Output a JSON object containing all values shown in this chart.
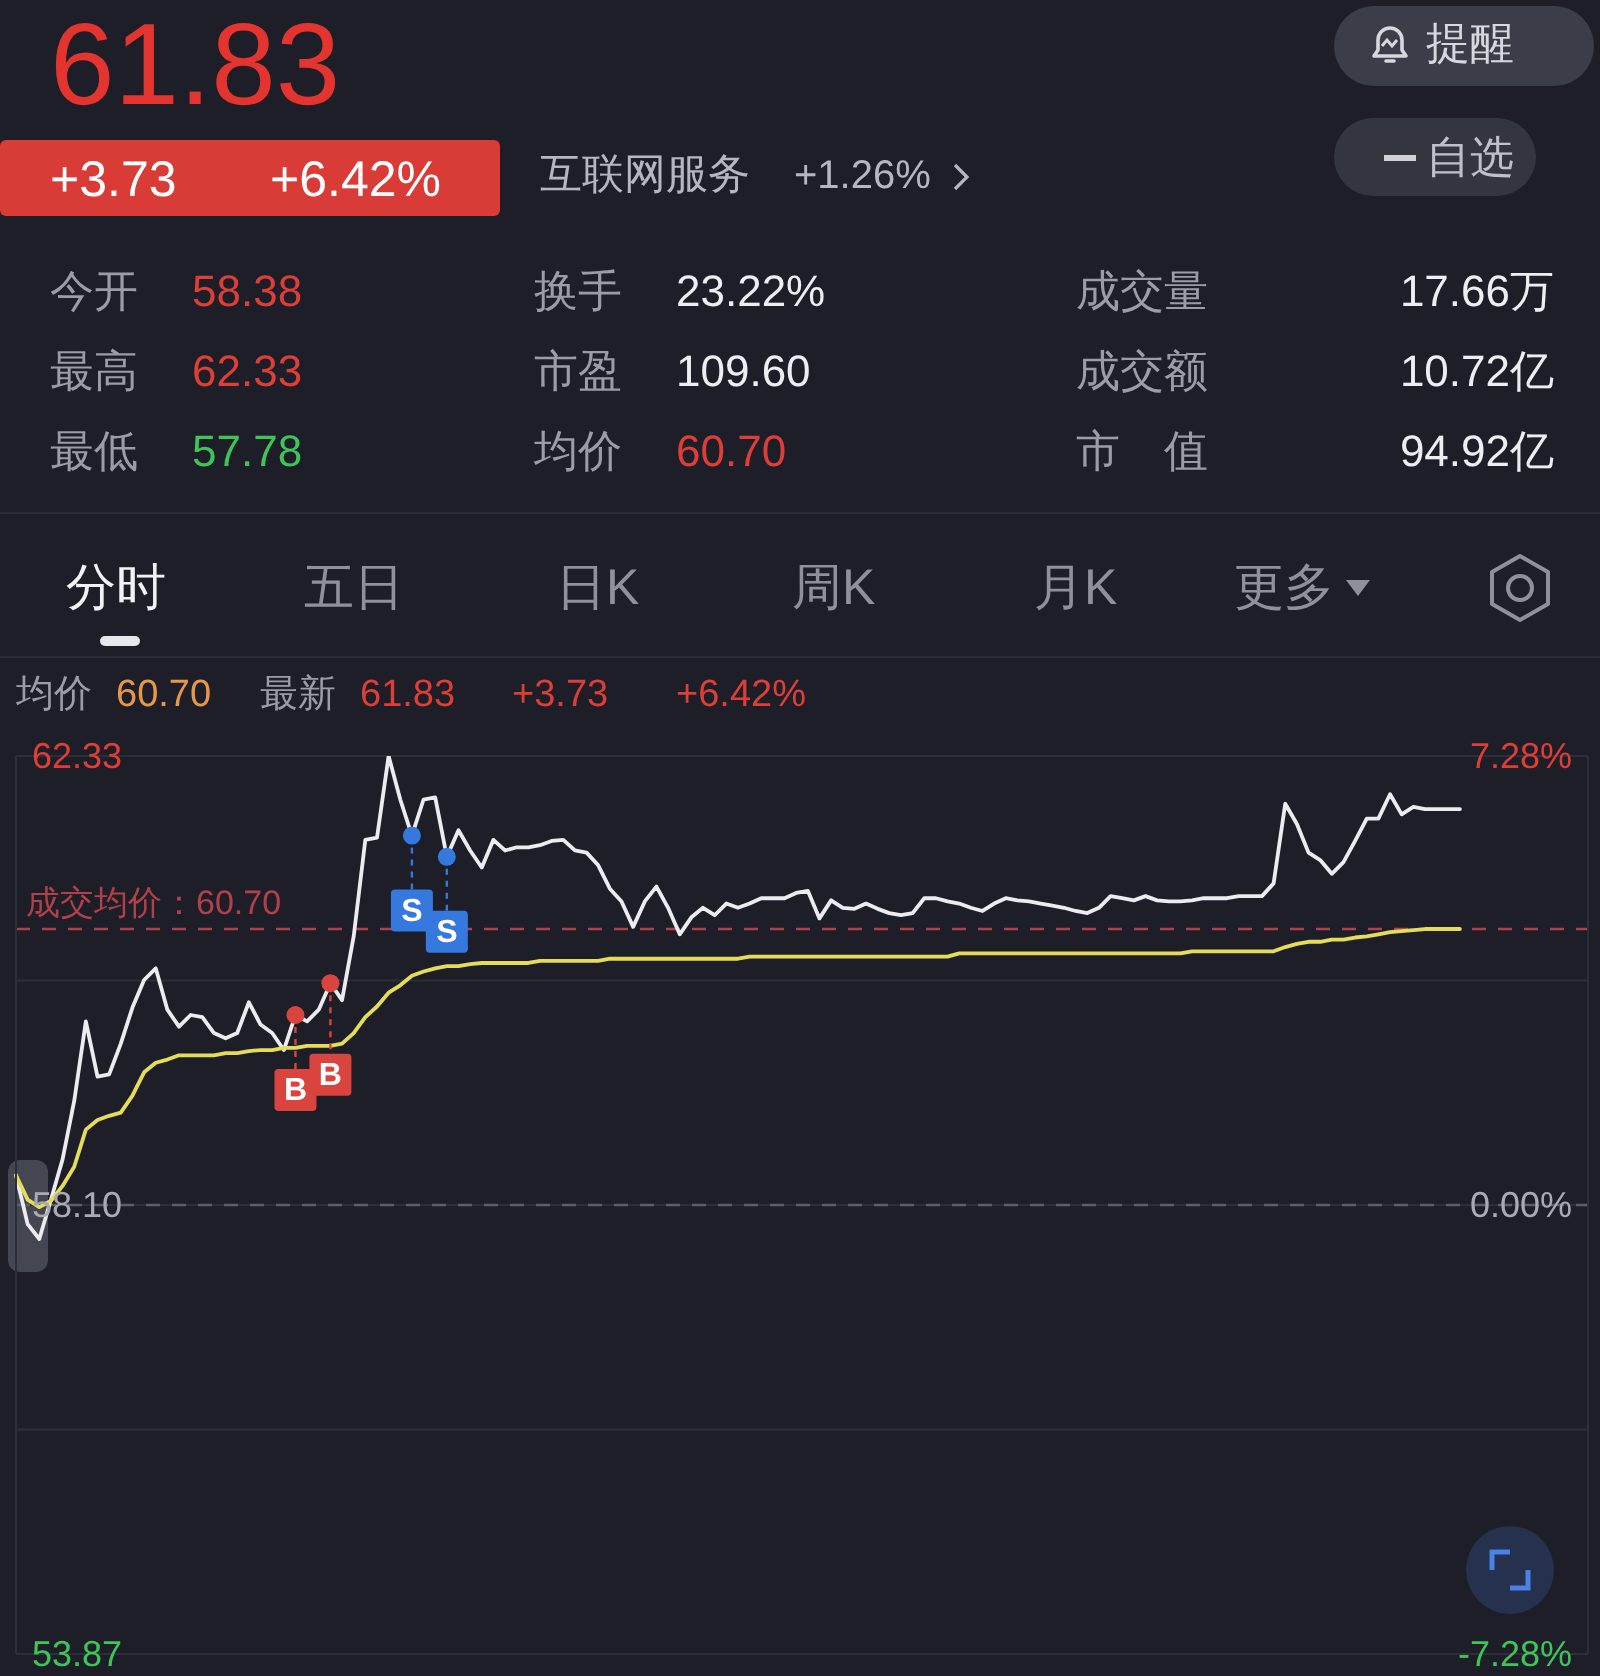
{
  "chart_data": {
    "type": "line",
    "annotations": [
      "61.83",
      "+3.73",
      "+6.42%",
      "互联网服务",
      "+1.26%",
      "提醒",
      "自选",
      "今开",
      "58.38",
      "换手",
      "23.22%",
      "成交量",
      "17.66万",
      "最高",
      "62.33",
      "市盈",
      "109.60",
      "成交额",
      "10.72亿",
      "最低",
      "57.78",
      "均价",
      "60.70",
      "市　值",
      "94.92亿",
      "分时",
      "五日",
      "日K",
      "周K",
      "月K",
      "更多",
      "均价",
      "60.70",
      "最新",
      "61.83",
      "+3.73",
      "+6.42%"
    ],
    "categories": [
      null,
      null,
      null,
      null,
      null,
      null,
      null,
      null,
      null,
      null,
      null,
      null,
      null,
      null,
      null,
      null,
      null,
      null,
      null,
      null,
      null,
      null,
      null,
      null,
      null,
      null,
      null,
      null,
      null,
      null,
      null,
      null,
      null,
      null,
      null,
      null,
      null,
      null,
      null,
      null,
      null,
      null,
      null,
      null,
      null,
      null,
      null,
      null,
      null,
      null,
      null,
      null,
      null,
      null,
      null,
      null,
      null,
      null,
      null,
      null,
      null,
      null,
      null,
      null,
      null,
      null,
      null,
      null,
      null,
      null,
      null,
      null,
      null,
      null,
      null,
      null,
      null,
      null,
      null,
      null,
      null,
      null,
      null,
      null,
      null,
      null,
      null,
      null,
      null,
      null,
      null,
      null,
      null,
      null,
      null,
      null,
      null,
      null,
      null,
      null,
      null,
      null,
      null,
      null,
      null,
      null,
      null,
      null,
      null,
      null,
      null,
      null,
      null,
      null,
      null,
      null,
      null,
      null,
      null,
      null,
      null,
      null,
      null,
      null,
      null,
      null,
      null,
      null,
      null,
      null,
      null,
      null,
      null,
      null,
      null,
      null
    ],
    "series": [
      {
        "type": "line",
        "color": "#ececf0",
        "values": [
          58.38,
          57.92,
          57.78,
          58.15,
          58.53,
          59.08,
          59.83,
          59.31,
          59.33,
          59.62,
          59.96,
          60.22,
          60.33,
          59.94,
          59.78,
          59.89,
          59.87,
          59.72,
          59.67,
          59.72,
          60.01,
          59.8,
          59.72,
          59.56,
          59.89,
          59.83,
          59.94,
          60.19,
          60.03,
          60.63,
          61.54,
          61.56,
          62.33,
          61.92,
          61.58,
          61.92,
          61.94,
          61.38,
          61.63,
          61.44,
          61.28,
          61.54,
          61.44,
          61.47,
          61.47,
          61.49,
          61.53,
          61.54,
          61.44,
          61.42,
          61.3,
          61.08,
          60.96,
          60.72,
          60.96,
          61.1,
          60.9,
          60.65,
          60.81,
          60.9,
          60.83,
          60.94,
          60.9,
          60.94,
          60.99,
          60.99,
          60.99,
          61.04,
          61.06,
          60.8,
          60.97,
          60.9,
          60.89,
          60.94,
          60.89,
          60.85,
          60.83,
          60.85,
          60.99,
          60.99,
          60.96,
          60.94,
          60.9,
          60.87,
          60.94,
          60.99,
          60.97,
          60.96,
          60.94,
          60.92,
          60.9,
          60.87,
          60.85,
          60.9,
          61.01,
          60.99,
          60.97,
          61.01,
          60.97,
          60.96,
          60.96,
          60.97,
          60.99,
          60.99,
          60.99,
          61.01,
          61.01,
          61.01,
          61.13,
          61.88,
          61.69,
          61.42,
          61.35,
          61.22,
          61.33,
          61.53,
          61.74,
          61.74,
          61.97,
          61.78,
          61.85,
          61.83,
          61.83,
          61.83,
          61.83,
          null,
          null,
          null,
          null,
          null,
          null,
          null,
          null,
          null,
          null,
          null
        ]
      },
      {
        "type": "line",
        "color": "#e5dd5a",
        "values": [
          58.38,
          58.15,
          58.08,
          58.14,
          58.28,
          58.46,
          58.81,
          58.9,
          58.94,
          58.97,
          59.13,
          59.35,
          59.44,
          59.47,
          59.51,
          59.51,
          59.51,
          59.51,
          59.53,
          59.53,
          59.55,
          59.56,
          59.56,
          59.58,
          59.58,
          59.6,
          59.6,
          59.6,
          59.62,
          59.72,
          59.87,
          59.97,
          60.1,
          60.17,
          60.26,
          60.3,
          60.33,
          60.35,
          60.35,
          60.37,
          60.38,
          60.38,
          60.38,
          60.38,
          60.38,
          60.4,
          60.4,
          60.4,
          60.4,
          60.4,
          60.4,
          60.42,
          60.42,
          60.42,
          60.42,
          60.42,
          60.42,
          60.42,
          60.42,
          60.42,
          60.42,
          60.42,
          60.42,
          60.44,
          60.44,
          60.44,
          60.44,
          60.44,
          60.44,
          60.44,
          60.44,
          60.44,
          60.44,
          60.44,
          60.44,
          60.44,
          60.44,
          60.44,
          60.44,
          60.44,
          60.44,
          60.47,
          60.47,
          60.47,
          60.47,
          60.47,
          60.47,
          60.47,
          60.47,
          60.47,
          60.47,
          60.47,
          60.47,
          60.47,
          60.47,
          60.47,
          60.47,
          60.47,
          60.47,
          60.47,
          60.47,
          60.49,
          60.49,
          60.49,
          60.49,
          60.49,
          60.49,
          60.49,
          60.49,
          60.53,
          60.56,
          60.58,
          60.58,
          60.6,
          60.6,
          60.62,
          60.63,
          60.65,
          60.67,
          60.68,
          60.69,
          60.7,
          60.7,
          60.7,
          60.7,
          null,
          null,
          null,
          null,
          null,
          null,
          null,
          null,
          null,
          null,
          null
        ]
      },
      {
        "type": "scatter",
        "color": "#d9443e",
        "values": [
          null,
          null,
          null,
          null,
          null,
          null,
          null,
          null,
          null,
          null,
          null,
          null,
          null,
          null,
          null,
          null,
          null,
          null,
          null,
          null,
          null,
          null,
          null,
          null,
          59.89,
          null,
          null,
          60.19,
          null,
          null,
          null,
          null,
          null,
          null,
          null,
          null,
          null,
          null,
          null,
          null,
          null,
          null,
          null,
          null,
          null,
          null,
          null,
          null,
          null,
          null,
          null,
          null,
          null,
          null,
          null,
          null,
          null,
          null,
          null,
          null,
          null,
          null,
          null,
          null,
          null,
          null,
          null,
          null,
          null,
          null,
          null,
          null,
          null,
          null,
          null,
          null,
          null,
          null,
          null,
          null,
          null,
          null,
          null,
          null,
          null,
          null,
          null,
          null,
          null,
          null,
          null,
          null,
          null,
          null,
          null,
          null,
          null,
          null,
          null,
          null,
          null,
          null,
          null,
          null,
          null,
          null,
          null,
          null,
          null,
          null,
          null,
          null,
          null,
          null,
          null,
          null,
          null,
          null,
          null,
          null,
          null,
          null,
          null,
          null,
          null,
          null,
          null,
          null,
          null,
          null,
          null,
          null,
          null,
          null,
          null,
          null
        ],
        "value_labels": [
          null,
          null,
          null,
          null,
          null,
          null,
          null,
          null,
          null,
          null,
          null,
          null,
          null,
          null,
          null,
          null,
          null,
          null,
          null,
          null,
          null,
          null,
          null,
          null,
          "B",
          null,
          null,
          "B",
          null,
          null,
          null,
          null,
          null,
          null,
          null,
          null,
          null,
          null,
          null,
          null,
          null,
          null,
          null,
          null,
          null,
          null,
          null,
          null,
          null,
          null,
          null,
          null,
          null,
          null,
          null,
          null,
          null,
          null,
          null,
          null,
          null,
          null,
          null,
          null,
          null,
          null,
          null,
          null,
          null,
          null,
          null,
          null,
          null,
          null,
          null,
          null,
          null,
          null,
          null,
          null,
          null,
          null,
          null,
          null,
          null,
          null,
          null,
          null,
          null,
          null,
          null,
          null,
          null,
          null,
          null,
          null,
          null,
          null,
          null,
          null,
          null,
          null,
          null,
          null,
          null,
          null,
          null,
          null,
          null,
          null,
          null,
          null,
          null,
          null,
          null,
          null,
          null,
          null,
          null,
          null,
          null,
          null,
          null,
          null,
          null,
          null,
          null,
          null,
          null,
          null,
          null,
          null,
          null,
          null,
          null,
          null
        ]
      },
      {
        "type": "scatter",
        "color": "#3578de",
        "values": [
          null,
          null,
          null,
          null,
          null,
          null,
          null,
          null,
          null,
          null,
          null,
          null,
          null,
          null,
          null,
          null,
          null,
          null,
          null,
          null,
          null,
          null,
          null,
          null,
          null,
          null,
          null,
          null,
          null,
          null,
          null,
          null,
          null,
          null,
          61.58,
          null,
          null,
          61.38,
          null,
          null,
          null,
          null,
          null,
          null,
          null,
          null,
          null,
          null,
          null,
          null,
          null,
          null,
          null,
          null,
          null,
          null,
          null,
          null,
          null,
          null,
          null,
          null,
          null,
          null,
          null,
          null,
          null,
          null,
          null,
          null,
          null,
          null,
          null,
          null,
          null,
          null,
          null,
          null,
          null,
          null,
          null,
          null,
          null,
          null,
          null,
          null,
          null,
          null,
          null,
          null,
          null,
          null,
          null,
          null,
          null,
          null,
          null,
          null,
          null,
          null,
          null,
          null,
          null,
          null,
          null,
          null,
          null,
          null,
          null,
          null,
          null,
          null,
          null,
          null,
          null,
          null,
          null,
          null,
          null,
          null,
          null,
          null,
          null,
          null,
          null,
          null,
          null,
          null,
          null,
          null,
          null,
          null,
          null,
          null,
          null,
          null
        ],
        "value_labels": [
          null,
          null,
          null,
          null,
          null,
          null,
          null,
          null,
          null,
          null,
          null,
          null,
          null,
          null,
          null,
          null,
          null,
          null,
          null,
          null,
          null,
          null,
          null,
          null,
          null,
          null,
          null,
          null,
          null,
          null,
          null,
          null,
          null,
          null,
          "S",
          null,
          null,
          "S",
          null,
          null,
          null,
          null,
          null,
          null,
          null,
          null,
          null,
          null,
          null,
          null,
          null,
          null,
          null,
          null,
          null,
          null,
          null,
          null,
          null,
          null,
          null,
          null,
          null,
          null,
          null,
          null,
          null,
          null,
          null,
          null,
          null,
          null,
          null,
          null,
          null,
          null,
          null,
          null,
          null,
          null,
          null,
          null,
          null,
          null,
          null,
          null,
          null,
          null,
          null,
          null,
          null,
          null,
          null,
          null,
          null,
          null,
          null,
          null,
          null,
          null,
          null,
          null,
          null,
          null,
          null,
          null,
          null,
          null,
          null,
          null,
          null,
          null,
          null,
          null,
          null,
          null,
          null,
          null,
          null,
          null,
          null,
          null,
          null,
          null,
          null,
          null,
          null,
          null,
          null,
          null,
          null,
          null,
          null,
          null,
          null,
          null
        ]
      }
    ],
    "ylim": [
      53.87,
      62.33
    ],
    "yticks": [
      53.87,
      {
        "value": 55.985,
        "label": null
      },
      {
        "value": 58.1,
        "label": "58.10"
      },
      {
        "value": 60.215,
        "label": null
      },
      62.33
    ],
    "y2lim": [
      -7.28,
      7.28
    ],
    "y2ticks": [
      {
        "value": -7.28,
        "label": "-7.28%"
      },
      {
        "value": 0,
        "label": "0.00%"
      },
      {
        "value": 7.28,
        "label": "7.28%"
      }
    ],
    "ref_lines": [
      {
        "axis": "y",
        "value": 60.7,
        "label": "成交均价：60.70",
        "color": "#b0404a",
        "line_style": "dashed"
      },
      {
        "axis": "y",
        "value": 58.1,
        "color": "#5b5f6c",
        "line_style": "dashed"
      }
    ],
    "grid": true
  }
}
